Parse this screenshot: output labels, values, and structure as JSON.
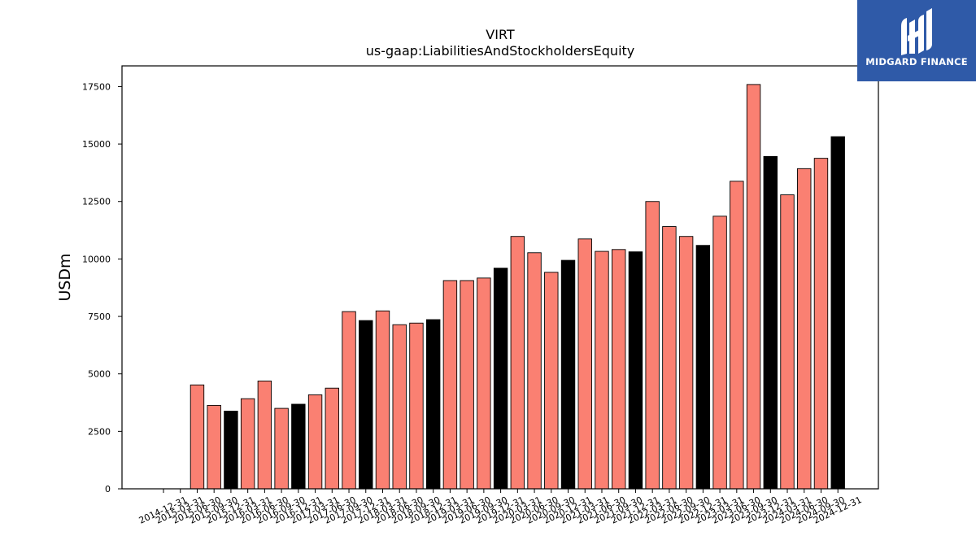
{
  "logo": {
    "text": "MIDGARD FINANCE"
  },
  "colors": {
    "default_bar": "#fa8072",
    "highlight_bar": "#000000",
    "logo_bg": "#2f5aa8"
  },
  "chart_data": {
    "type": "bar",
    "title": "VIRT",
    "subtitle": "us-gaap:LiabilitiesAndStockholdersEquity",
    "xlabel": "",
    "ylabel": "USDm",
    "ylim": [
      0,
      18400
    ],
    "yticks": [
      0,
      2500,
      5000,
      7500,
      10000,
      12500,
      15000,
      17500
    ],
    "grid": false,
    "legend": "none",
    "categories": [
      "2014-12-31",
      "2015-03-31",
      "2015-06-30",
      "2015-09-30",
      "2015-12-31",
      "2016-03-31",
      "2016-06-30",
      "2016-09-30",
      "2016-12-31",
      "2017-03-31",
      "2017-06-30",
      "2017-09-30",
      "2017-12-31",
      "2018-03-31",
      "2018-06-30",
      "2018-09-30",
      "2018-12-31",
      "2019-03-31",
      "2019-06-30",
      "2019-09-30",
      "2019-12-31",
      "2020-03-31",
      "2020-06-30",
      "2020-09-30",
      "2020-12-31",
      "2021-03-31",
      "2021-06-30",
      "2021-09-30",
      "2021-12-31",
      "2022-03-31",
      "2022-06-30",
      "2022-09-30",
      "2022-12-31",
      "2023-03-31",
      "2023-06-30",
      "2023-09-30",
      "2023-12-31",
      "2024-03-31",
      "2024-06-30",
      "2024-09-30",
      "2024-12-31"
    ],
    "values": [
      0,
      0,
      4520,
      3630,
      3380,
      3920,
      4690,
      3500,
      3680,
      4090,
      4380,
      7710,
      7320,
      7740,
      7140,
      7210,
      7360,
      9060,
      9060,
      9170,
      9600,
      10980,
      10270,
      9420,
      9940,
      10870,
      10330,
      10410,
      10310,
      12500,
      11410,
      10980,
      10590,
      11860,
      13380,
      17590,
      14460,
      12790,
      13930,
      14380,
      15320
    ],
    "highlight": [
      false,
      false,
      false,
      false,
      true,
      false,
      false,
      false,
      true,
      false,
      false,
      false,
      true,
      false,
      false,
      false,
      true,
      false,
      false,
      false,
      true,
      false,
      false,
      false,
      true,
      false,
      false,
      false,
      true,
      false,
      false,
      false,
      true,
      false,
      false,
      false,
      true,
      false,
      false,
      false,
      true
    ]
  }
}
